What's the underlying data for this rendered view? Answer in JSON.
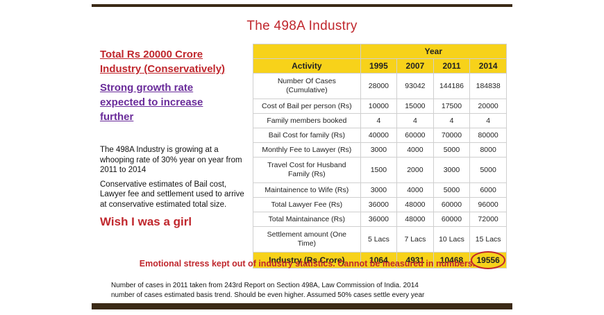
{
  "title": "The 498A Industry",
  "left": {
    "heading_red": [
      "Total Rs 20000 Crore",
      "Industry (Conservatively)"
    ],
    "heading_purple": [
      "Strong growth rate",
      "expected to increase",
      "further"
    ],
    "para1": "The 498A Industry is growing at a whooping rate of 30% year on year from 2011 to 2014",
    "para2": "Conservative estimates of Bail cost, Lawyer fee and settlement used to arrive at conservative estimated total size.",
    "wish": "Wish I was a girl"
  },
  "table": {
    "year_header": "Year",
    "activity_header": "Activity",
    "years": [
      "1995",
      "2007",
      "2011",
      "2014"
    ],
    "rows": [
      {
        "activity": [
          "Number Of Cases",
          "(Cumulative)"
        ],
        "values": [
          "28000",
          "93042",
          "144186",
          "184838"
        ]
      },
      {
        "activity": [
          "Cost of Bail per person (Rs)"
        ],
        "values": [
          "10000",
          "15000",
          "17500",
          "20000"
        ]
      },
      {
        "activity": [
          "Family members booked"
        ],
        "values": [
          "4",
          "4",
          "4",
          "4"
        ]
      },
      {
        "activity": [
          "Bail Cost for family (Rs)"
        ],
        "values": [
          "40000",
          "60000",
          "70000",
          "80000"
        ]
      },
      {
        "activity": [
          "Monthly Fee to Lawyer (Rs)"
        ],
        "values": [
          "3000",
          "4000",
          "5000",
          "8000"
        ]
      },
      {
        "activity": [
          "Travel Cost for Husband",
          "Family (Rs)"
        ],
        "values": [
          "1500",
          "2000",
          "3000",
          "5000"
        ]
      },
      {
        "activity": [
          "Maintainence to Wife (Rs)"
        ],
        "values": [
          "3000",
          "4000",
          "5000",
          "6000"
        ]
      },
      {
        "activity": [
          "Total Lawyer Fee (Rs)"
        ],
        "values": [
          "36000",
          "48000",
          "60000",
          "96000"
        ]
      },
      {
        "activity": [
          "Total Maintainance (Rs)"
        ],
        "values": [
          "36000",
          "48000",
          "60000",
          "72000"
        ]
      },
      {
        "activity": [
          "Settlement amount (One",
          "Time)"
        ],
        "values": [
          "5 Lacs",
          "7 Lacs",
          "10 Lacs",
          "15 Lacs"
        ]
      }
    ],
    "total": {
      "activity": "Industry (Rs Crore)",
      "values": [
        "1064",
        "4931",
        "10468",
        "19556"
      ]
    }
  },
  "stress_note": "Emotional stress kept out of industry statistics. Cannot be measured in numbers.",
  "footnote": [
    "Number of cases  in 2011 taken from 243rd Report on Section 498A, Law Commission of India. 2014",
    "number of cases estimated basis trend. Should be even higher. Assumed 50% cases settle every year"
  ]
}
